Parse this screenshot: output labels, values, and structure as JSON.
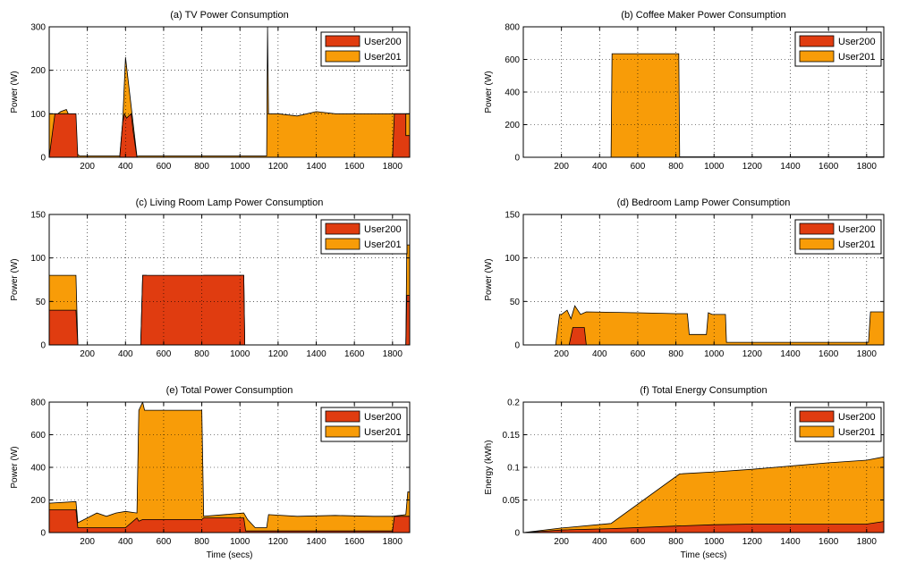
{
  "colors": {
    "user200": "#e03c10",
    "user201": "#f89c08",
    "edge": "#000000",
    "grid": "#000000"
  },
  "chart_data": [
    {
      "id": "a",
      "type": "area",
      "title": "(a) TV Power Consumption",
      "xlabel": "",
      "ylabel": "Power (W)",
      "xlim": [
        0,
        1890
      ],
      "ylim": [
        0,
        300
      ],
      "xticks": [
        200,
        400,
        600,
        800,
        1000,
        1200,
        1400,
        1600,
        1800
      ],
      "yticks": [
        0,
        100,
        200,
        300
      ],
      "grid": true,
      "legend": "top-right",
      "series": [
        {
          "name": "User200",
          "x": [
            0,
            30,
            30,
            140,
            150,
            370,
            385,
            395,
            405,
            430,
            440,
            460,
            470,
            1800,
            1810,
            1815,
            1870,
            1870,
            1890
          ],
          "y": [
            0,
            100,
            100,
            100,
            0,
            0,
            80,
            100,
            90,
            100,
            60,
            0,
            0,
            0,
            100,
            100,
            100,
            50,
            50
          ]
        },
        {
          "name": "User201",
          "x": [
            0,
            30,
            30,
            60,
            90,
            100,
            140,
            160,
            370,
            385,
            400,
            460,
            470,
            1140,
            1145,
            1150,
            1200,
            1300,
            1400,
            1500,
            1600,
            1700,
            1800,
            1870,
            1890
          ],
          "y": [
            100,
            100,
            95,
            105,
            110,
            100,
            10,
            3,
            3,
            80,
            230,
            2,
            3,
            3,
            300,
            100,
            100,
            95,
            105,
            100,
            100,
            100,
            100,
            100,
            100
          ]
        }
      ]
    },
    {
      "id": "b",
      "type": "area",
      "title": "(b) Coffee Maker Power Consumption",
      "xlabel": "",
      "ylabel": "Power (W)",
      "xlim": [
        0,
        1890
      ],
      "ylim": [
        0,
        800
      ],
      "xticks": [
        200,
        400,
        600,
        800,
        1000,
        1200,
        1400,
        1600,
        1800
      ],
      "yticks": [
        0,
        200,
        400,
        600,
        800
      ],
      "grid": true,
      "legend": "top-right",
      "series": [
        {
          "name": "User200",
          "x": [
            0,
            1890
          ],
          "y": [
            0,
            0
          ]
        },
        {
          "name": "User201",
          "x": [
            0,
            460,
            465,
            815,
            820,
            1890
          ],
          "y": [
            0,
            0,
            635,
            635,
            3,
            3
          ]
        }
      ]
    },
    {
      "id": "c",
      "type": "area",
      "title": "(c) Living Room Lamp Power Consumption",
      "xlabel": "",
      "ylabel": "Power (W)",
      "xlim": [
        0,
        1890
      ],
      "ylim": [
        0,
        150
      ],
      "xticks": [
        200,
        400,
        600,
        800,
        1000,
        1200,
        1400,
        1600,
        1800
      ],
      "yticks": [
        0,
        50,
        100,
        150
      ],
      "grid": true,
      "legend": "top-right",
      "series": [
        {
          "name": "User200",
          "x": [
            0,
            140,
            150,
            480,
            490,
            1020,
            1025,
            1870,
            1875,
            1890
          ],
          "y": [
            40,
            40,
            0,
            0,
            80,
            80,
            0,
            0,
            57,
            57
          ]
        },
        {
          "name": "User201",
          "x": [
            0,
            140,
            150,
            480,
            490,
            510,
            520,
            800,
            810,
            1020,
            1025,
            1870,
            1875,
            1890
          ],
          "y": [
            80,
            80,
            0,
            0,
            80,
            80,
            40,
            40,
            80,
            80,
            0,
            0,
            115,
            115
          ]
        }
      ]
    },
    {
      "id": "d",
      "type": "area",
      "title": "(d) Bedroom Lamp Power Consumption",
      "xlabel": "",
      "ylabel": "Power (W)",
      "xlim": [
        0,
        1890
      ],
      "ylim": [
        0,
        150
      ],
      "xticks": [
        200,
        400,
        600,
        800,
        1000,
        1200,
        1400,
        1600,
        1800
      ],
      "yticks": [
        0,
        50,
        100,
        150
      ],
      "grid": true,
      "legend": "top-right",
      "series": [
        {
          "name": "User200",
          "x": [
            0,
            240,
            260,
            300,
            320,
            330,
            1890
          ],
          "y": [
            0,
            0,
            20,
            20,
            20,
            0,
            0
          ]
        },
        {
          "name": "User201",
          "x": [
            0,
            170,
            190,
            200,
            230,
            250,
            270,
            300,
            330,
            600,
            800,
            860,
            870,
            960,
            970,
            990,
            1060,
            1065,
            1810,
            1820,
            1890
          ],
          "y": [
            0,
            0,
            35,
            35,
            40,
            30,
            45,
            35,
            38,
            37,
            36,
            36,
            12,
            12,
            37,
            35,
            35,
            3,
            3,
            38,
            38
          ]
        }
      ]
    },
    {
      "id": "e",
      "type": "area",
      "title": "(e) Total Power Consumption",
      "xlabel": "Time (secs)",
      "ylabel": "Power (W)",
      "xlim": [
        0,
        1890
      ],
      "ylim": [
        0,
        800
      ],
      "xticks": [
        200,
        400,
        600,
        800,
        1000,
        1200,
        1400,
        1600,
        1800
      ],
      "yticks": [
        0,
        200,
        400,
        600,
        800
      ],
      "grid": true,
      "legend": "top-right",
      "series": [
        {
          "name": "User200",
          "x": [
            0,
            140,
            150,
            250,
            400,
            460,
            470,
            490,
            800,
            810,
            1020,
            1030,
            1800,
            1810,
            1890
          ],
          "y": [
            140,
            140,
            30,
            30,
            30,
            90,
            70,
            80,
            80,
            90,
            90,
            10,
            10,
            100,
            100
          ]
        },
        {
          "name": "User201",
          "x": [
            0,
            140,
            150,
            200,
            250,
            300,
            350,
            400,
            460,
            470,
            490,
            500,
            800,
            810,
            1020,
            1040,
            1080,
            1140,
            1150,
            1300,
            1500,
            1700,
            1800,
            1870,
            1880,
            1890
          ],
          "y": [
            180,
            190,
            60,
            90,
            120,
            100,
            120,
            130,
            120,
            750,
            800,
            750,
            750,
            100,
            120,
            80,
            30,
            30,
            110,
            100,
            105,
            100,
            100,
            110,
            250,
            250
          ]
        }
      ]
    },
    {
      "id": "f",
      "type": "area",
      "title": "(f) Total Energy Consumption",
      "xlabel": "Time (secs)",
      "ylabel": "Energy (kWh)",
      "xlim": [
        0,
        1890
      ],
      "ylim": [
        0,
        0.2
      ],
      "xticks": [
        200,
        400,
        600,
        800,
        1000,
        1200,
        1400,
        1600,
        1800
      ],
      "yticks": [
        0,
        0.05,
        0.1,
        0.15,
        0.2
      ],
      "grid": true,
      "legend": "top-right",
      "series": [
        {
          "name": "User200",
          "x": [
            0,
            200,
            460,
            800,
            1000,
            1200,
            1400,
            1600,
            1800,
            1890
          ],
          "y": [
            0,
            0.004,
            0.006,
            0.01,
            0.012,
            0.013,
            0.013,
            0.013,
            0.013,
            0.017
          ]
        },
        {
          "name": "User201",
          "x": [
            0,
            200,
            460,
            820,
            1000,
            1200,
            1400,
            1600,
            1800,
            1890
          ],
          "y": [
            0,
            0.007,
            0.014,
            0.09,
            0.093,
            0.097,
            0.102,
            0.107,
            0.111,
            0.116
          ]
        }
      ]
    }
  ]
}
